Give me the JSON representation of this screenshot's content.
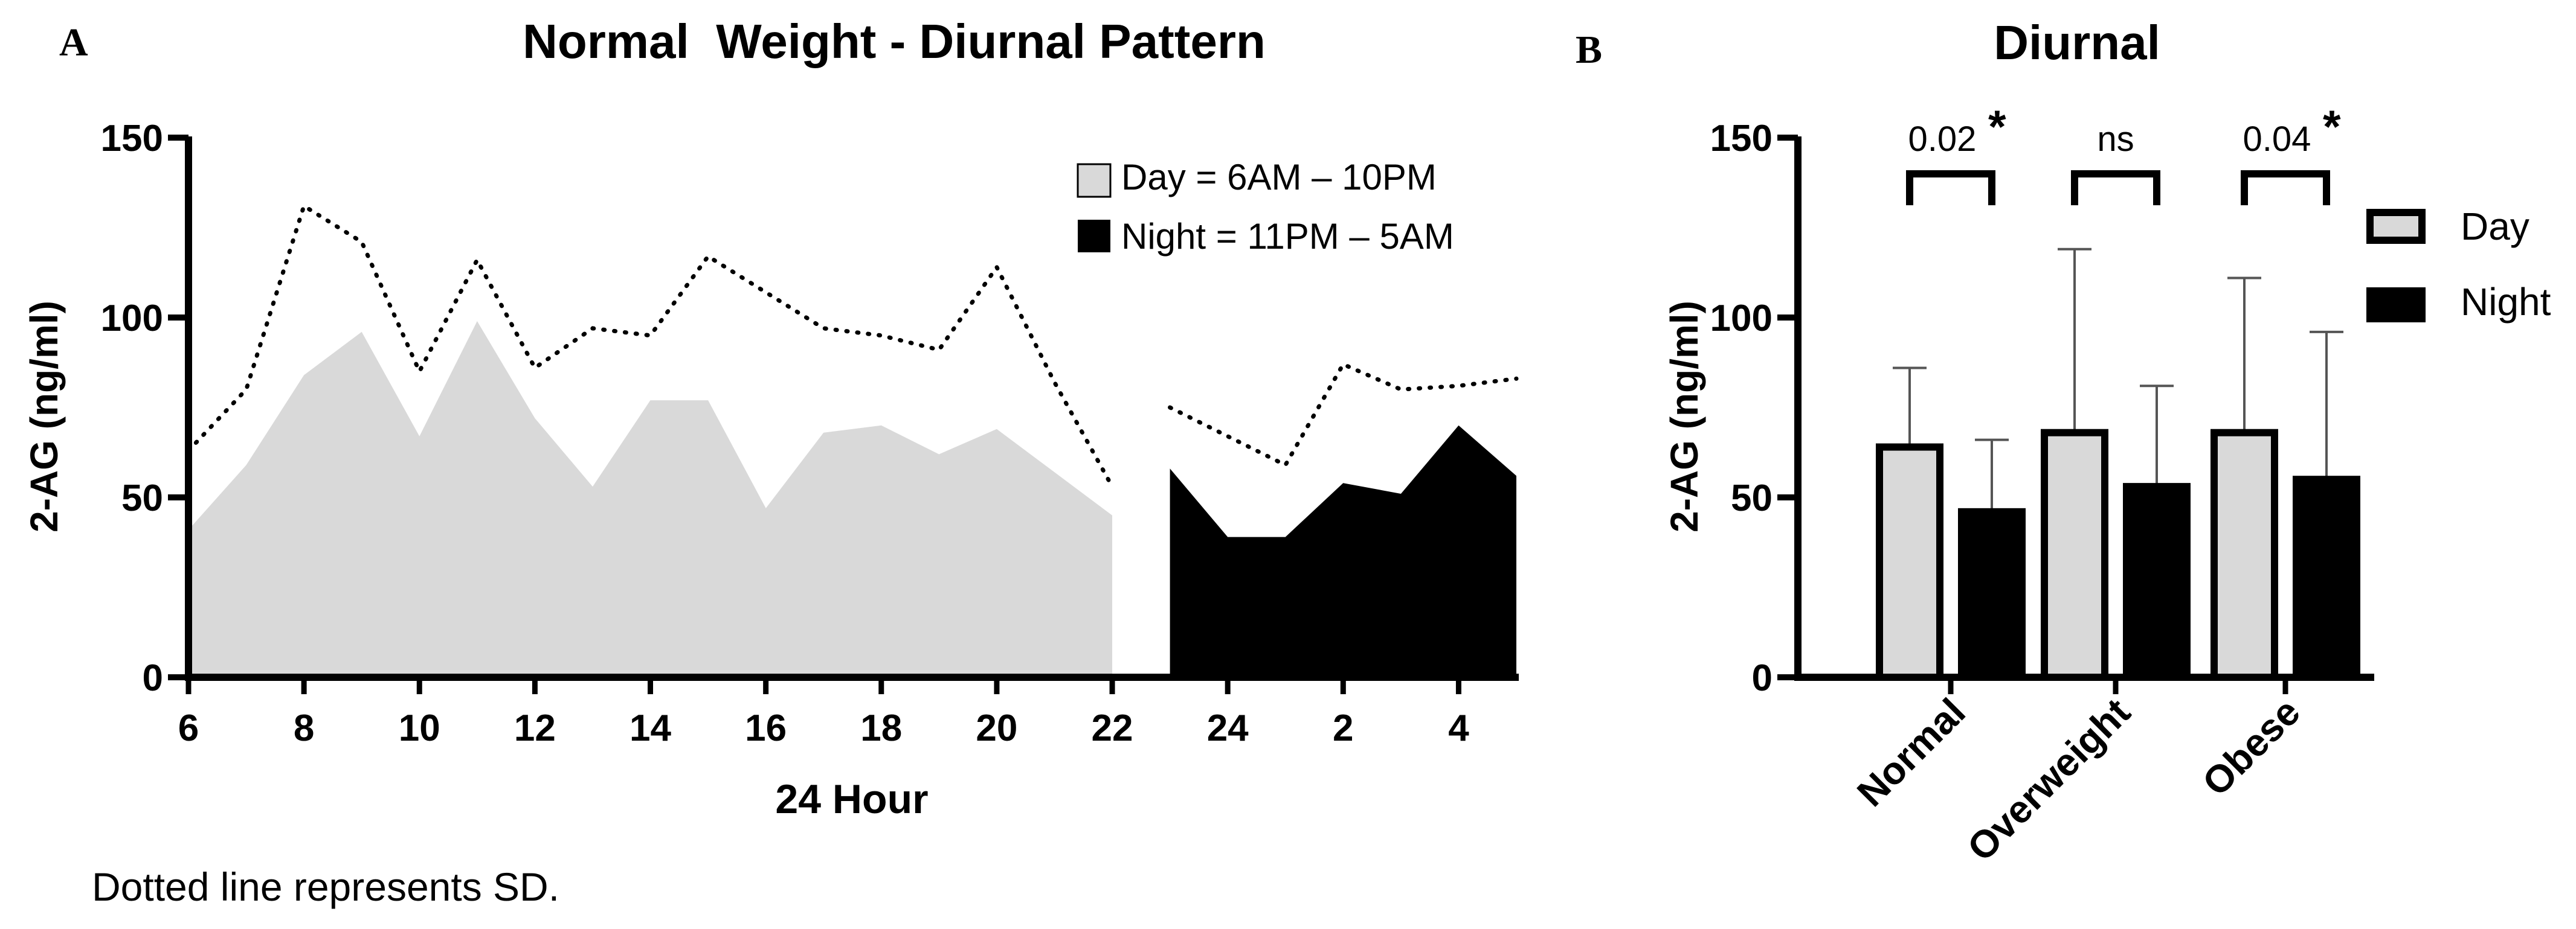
{
  "panel_a_letter": "A",
  "panel_b_letter": "B",
  "footnote": "Dotted line represents SD.",
  "chart_data": [
    {
      "type": "area",
      "title": "Normal  Weight - Diurnal Pattern",
      "xlabel": "24 Hour",
      "ylabel": "2-AG (ng/ml)",
      "ylim": [
        0,
        150
      ],
      "yticks": [
        "0",
        "50",
        "100",
        "150"
      ],
      "xticks": [
        "6",
        "8",
        "10",
        "12",
        "14",
        "16",
        "18",
        "20",
        "22",
        "24",
        "2",
        "4"
      ],
      "legend": [
        "Day = 6AM – 10PM",
        "Night = 11PM – 5AM"
      ],
      "legend_position": "top-right",
      "colors": {
        "day": "#d9d9d9",
        "night": "#000000"
      },
      "series": [
        {
          "name": "Day",
          "x": [
            6,
            7,
            8,
            9,
            10,
            11,
            12,
            13,
            14,
            15,
            16,
            17,
            18,
            19,
            20,
            21,
            22
          ],
          "values": [
            41,
            59,
            84,
            96,
            67,
            99,
            72,
            53,
            77,
            77,
            47,
            68,
            70,
            62,
            69,
            57,
            45
          ]
        },
        {
          "name": "Night",
          "x": [
            23,
            24,
            25,
            26,
            27,
            28,
            29
          ],
          "values": [
            58,
            39,
            39,
            54,
            51,
            70,
            56
          ]
        }
      ],
      "sd_series": [
        {
          "name": "Day SD",
          "x": [
            6,
            7,
            8,
            9,
            10,
            11,
            12,
            13,
            14,
            15,
            16,
            17,
            18,
            19,
            20,
            21,
            22
          ],
          "values": [
            63,
            80,
            131,
            121,
            85,
            116,
            86,
            97,
            95,
            117,
            107,
            97,
            95,
            91,
            114,
            82,
            53
          ]
        },
        {
          "name": "Night SD",
          "x": [
            23,
            24,
            25,
            26,
            27,
            28,
            29
          ],
          "values": [
            75,
            67,
            59,
            87,
            80,
            81,
            83
          ]
        }
      ]
    },
    {
      "type": "bar",
      "title": "Diurnal",
      "ylabel": "2-AG (ng/ml)",
      "ylim": [
        0,
        150
      ],
      "yticks": [
        "0",
        "50",
        "100",
        "150"
      ],
      "categories": [
        "Normal",
        "Overweight",
        "Obese"
      ],
      "legend_position": "right",
      "colors": {
        "Day": "#d9d9d9",
        "Night": "#000000"
      },
      "series": [
        {
          "name": "Day",
          "values": [
            64,
            68,
            68
          ],
          "error": [
            22,
            51,
            43
          ]
        },
        {
          "name": "Night",
          "values": [
            46,
            53,
            55
          ],
          "error": [
            20,
            28,
            41
          ]
        }
      ],
      "annotations": [
        {
          "category": "Normal",
          "p": "0.02",
          "star": "*"
        },
        {
          "category": "Overweight",
          "p": "ns",
          "star": ""
        },
        {
          "category": "Obese",
          "p": "0.04",
          "star": "*"
        }
      ]
    }
  ]
}
